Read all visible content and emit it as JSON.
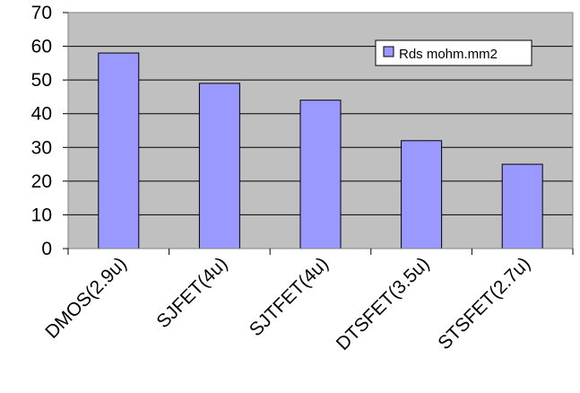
{
  "chart_data": {
    "type": "bar",
    "categories": [
      "DMOS(2.9u)",
      "SJFET(4u)",
      "SJTFET(4u)",
      "DTSFET(3.5u)",
      "STSFET(2.7u)"
    ],
    "series": [
      {
        "name": "Rds mohm.mm2",
        "values": [
          58,
          49,
          44,
          32,
          25
        ]
      }
    ],
    "title": "",
    "xlabel": "",
    "ylabel": "",
    "ylim": [
      0,
      70
    ],
    "yticks": [
      0,
      10,
      20,
      30,
      40,
      50,
      60,
      70
    ],
    "grid": true,
    "legend": "top-right",
    "colors": {
      "bar": "#9999ff",
      "bar_stroke": "#000000",
      "plot_background": "#c0c0c0",
      "gridline": "#000000"
    }
  }
}
